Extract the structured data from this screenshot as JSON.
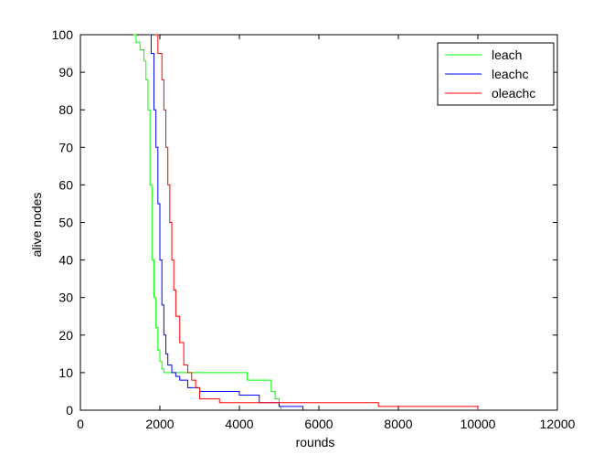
{
  "chart_data": {
    "type": "line",
    "title": "",
    "xlabel": "rounds",
    "ylabel": "alive nodes",
    "xlim": [
      0,
      12000
    ],
    "ylim": [
      0,
      100
    ],
    "xticks": [
      0,
      2000,
      4000,
      6000,
      8000,
      10000,
      12000
    ],
    "yticks": [
      0,
      10,
      20,
      30,
      40,
      50,
      60,
      70,
      80,
      90,
      100
    ],
    "xtick_labels": [
      "0",
      "2000",
      "4000",
      "6000",
      "8000",
      "10000",
      "12000"
    ],
    "ytick_labels": [
      "0",
      "10",
      "20",
      "30",
      "40",
      "50",
      "60",
      "70",
      "80",
      "90",
      "100"
    ],
    "grid": false,
    "legend_position": "top-right",
    "series": [
      {
        "name": "leach",
        "color": "#00ff00",
        "x": [
          1330,
          1400,
          1500,
          1600,
          1650,
          1700,
          1750,
          1800,
          1850,
          1900,
          1950,
          2000,
          2050,
          2100,
          2200,
          2400,
          3000,
          4100,
          4200,
          4700,
          4800,
          4900,
          5000,
          5050
        ],
        "y": [
          100,
          98,
          96,
          93,
          88,
          80,
          60,
          40,
          30,
          22,
          16,
          13,
          11,
          10,
          10,
          10,
          10,
          10,
          8,
          8,
          5,
          3,
          1,
          0
        ]
      },
      {
        "name": "leachc",
        "color": "#0000ff",
        "x": [
          1720,
          1780,
          1850,
          1900,
          1950,
          2000,
          2050,
          2100,
          2150,
          2200,
          2300,
          2400,
          2500,
          2700,
          3000,
          3500,
          4000,
          4500,
          5000,
          5600
        ],
        "y": [
          100,
          95,
          80,
          70,
          55,
          40,
          28,
          20,
          15,
          12,
          10,
          9,
          8,
          6,
          5,
          5,
          4,
          2,
          1,
          0
        ]
      },
      {
        "name": "oleachc",
        "color": "#ff0000",
        "x": [
          1870,
          1950,
          2050,
          2100,
          2150,
          2200,
          2250,
          2300,
          2350,
          2400,
          2500,
          2600,
          2700,
          2800,
          2900,
          3000,
          3500,
          4500,
          5000,
          7500,
          8000,
          9000,
          10000
        ],
        "y": [
          100,
          95,
          88,
          80,
          70,
          60,
          50,
          40,
          32,
          25,
          18,
          12,
          10,
          8,
          6,
          3,
          2,
          2,
          2,
          1,
          1,
          1,
          0
        ]
      }
    ]
  }
}
